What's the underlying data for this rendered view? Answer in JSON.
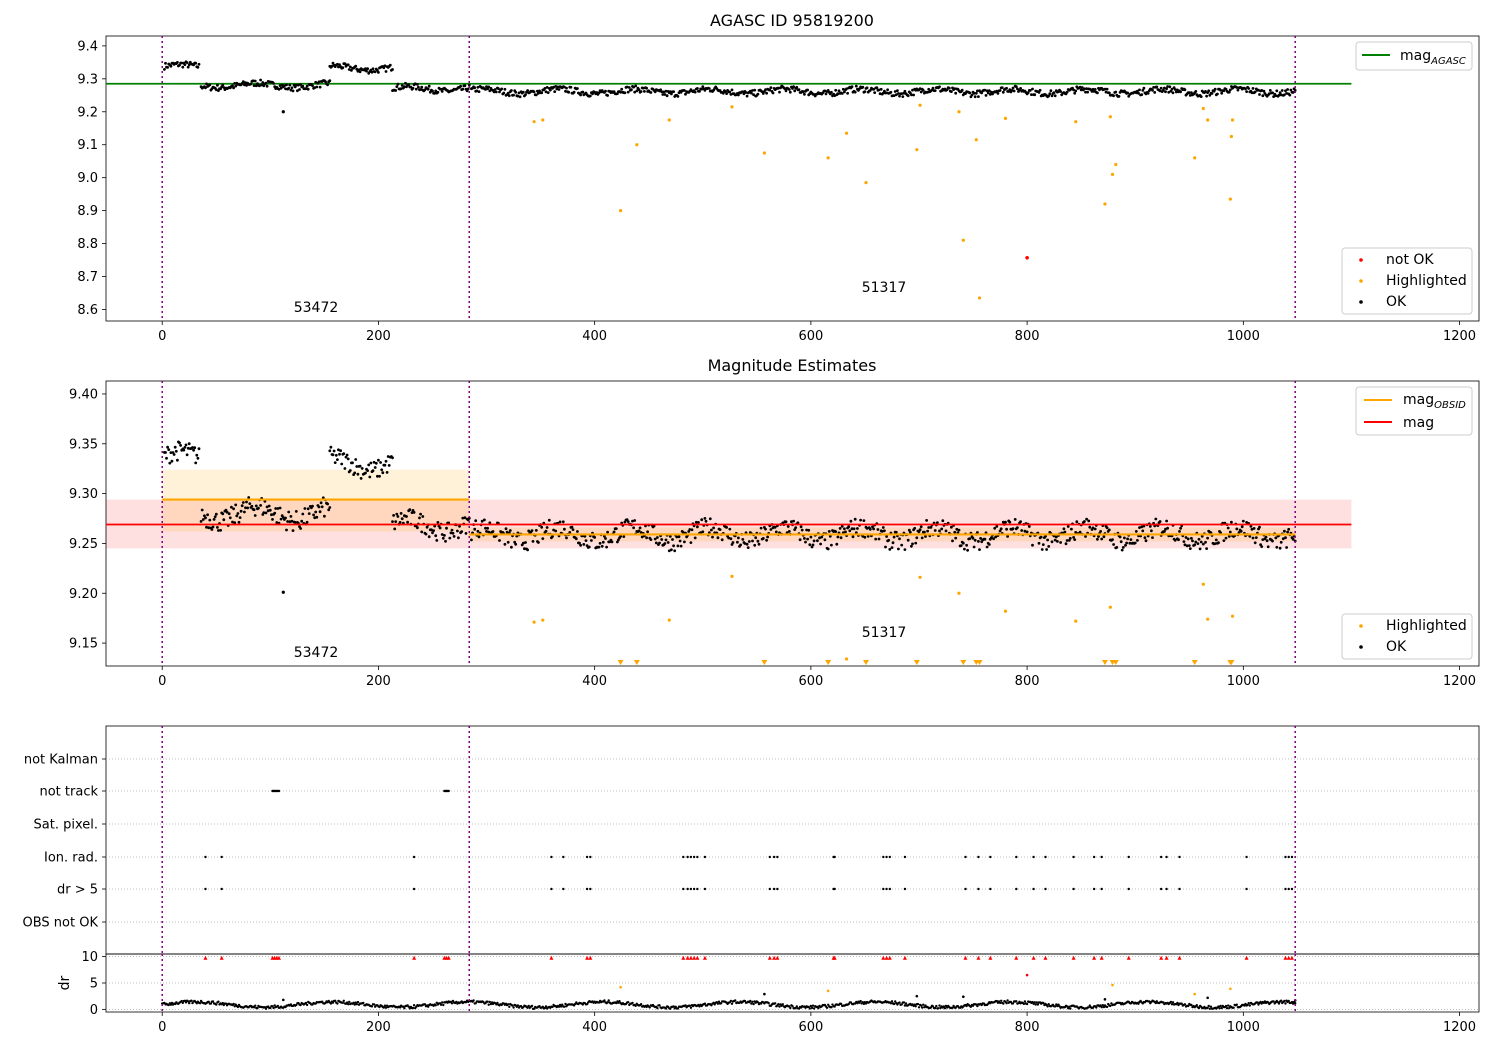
{
  "figure": {
    "width": 1500,
    "height": 1050
  },
  "colors": {
    "ok": "#000000",
    "highlighted": "#ffa500",
    "not_ok": "#ff0000",
    "mag_agasc": "#008000",
    "mag_obsid": "#ffa500",
    "mag": "#ff0000",
    "vline": "#800080"
  },
  "chart_data": [
    {
      "id": "top",
      "type": "scatter",
      "title": "AGASC ID 95819200",
      "xlim": [
        -52,
        1218
      ],
      "ylim": [
        8.565,
        9.43
      ],
      "xticks": [
        0,
        200,
        400,
        600,
        800,
        1000,
        1200
      ],
      "yticks": [
        8.6,
        8.7,
        8.8,
        8.9,
        9.0,
        9.1,
        9.2,
        9.3,
        9.4
      ],
      "yticklabels": [
        "8.6",
        "8.7",
        "8.8",
        "8.9",
        "9.0",
        "9.1",
        "9.2",
        "9.3",
        "9.4"
      ],
      "vlines": [
        0,
        284,
        1048
      ],
      "hline": {
        "name": "mag_AGASC",
        "y": 9.285,
        "x": [
          -52,
          1100
        ]
      },
      "obsid_labels": [
        {
          "text": "53472",
          "x": 142,
          "y": 8.59
        },
        {
          "text": "51317",
          "x": 665,
          "y": 8.65
        }
      ],
      "legends": [
        {
          "position": "upper right",
          "entries": [
            {
              "label": "mag",
              "sub": "AGASC",
              "kind": "line",
              "color": "#008000"
            }
          ]
        },
        {
          "position": "lower right",
          "entries": [
            {
              "label": "not OK",
              "kind": "dot",
              "color": "#ff0000"
            },
            {
              "label": "Highlighted",
              "kind": "dot",
              "color": "#ffa500"
            },
            {
              "label": "OK",
              "kind": "dot",
              "color": "#000000"
            }
          ]
        }
      ],
      "ok_segments": [
        {
          "x0": 2,
          "x1": 34,
          "base": 9.337,
          "amp": 0.012
        },
        {
          "x0": 36,
          "x1": 155,
          "base": 9.28,
          "amp": 0.012
        },
        {
          "x0": 155,
          "x1": 213,
          "base": 9.333,
          "amp": 0.012
        },
        {
          "x0": 213,
          "x1": 284,
          "base": 9.27,
          "amp": 0.012
        },
        {
          "x0": 286,
          "x1": 1048,
          "base": 9.262,
          "amp": 0.012
        }
      ],
      "extra_ok": [
        {
          "x": 112,
          "y": 9.2
        }
      ],
      "highlighted": [
        {
          "x": 344,
          "y": 9.17
        },
        {
          "x": 352,
          "y": 9.175
        },
        {
          "x": 424,
          "y": 8.9
        },
        {
          "x": 439,
          "y": 9.1
        },
        {
          "x": 469,
          "y": 9.175
        },
        {
          "x": 527,
          "y": 9.215
        },
        {
          "x": 557,
          "y": 9.075
        },
        {
          "x": 616,
          "y": 9.06
        },
        {
          "x": 633,
          "y": 9.135
        },
        {
          "x": 651,
          "y": 8.985
        },
        {
          "x": 698,
          "y": 9.085
        },
        {
          "x": 701,
          "y": 9.22
        },
        {
          "x": 737,
          "y": 9.2
        },
        {
          "x": 741,
          "y": 8.81
        },
        {
          "x": 753,
          "y": 9.115
        },
        {
          "x": 756,
          "y": 8.635
        },
        {
          "x": 780,
          "y": 9.18
        },
        {
          "x": 845,
          "y": 9.17
        },
        {
          "x": 872,
          "y": 8.92
        },
        {
          "x": 877,
          "y": 9.185
        },
        {
          "x": 879,
          "y": 9.01
        },
        {
          "x": 882,
          "y": 9.04
        },
        {
          "x": 955,
          "y": 9.06
        },
        {
          "x": 963,
          "y": 9.21
        },
        {
          "x": 967,
          "y": 9.175
        },
        {
          "x": 988,
          "y": 8.935
        },
        {
          "x": 989,
          "y": 9.125
        },
        {
          "x": 990,
          "y": 9.175
        }
      ],
      "not_ok": [
        {
          "x": 800,
          "y": 8.757
        }
      ]
    },
    {
      "id": "middle",
      "type": "scatter",
      "title": "Magnitude Estimates",
      "xlim": [
        -52,
        1218
      ],
      "ylim": [
        9.127,
        9.413
      ],
      "xticks": [
        0,
        200,
        400,
        600,
        800,
        1000,
        1200
      ],
      "yticks": [
        9.15,
        9.2,
        9.25,
        9.3,
        9.35,
        9.4
      ],
      "yticklabels": [
        "9.15",
        "9.20",
        "9.25",
        "9.30",
        "9.35",
        "9.40"
      ],
      "vlines": [
        0,
        284,
        1048
      ],
      "mag_band": {
        "y0": 9.245,
        "y1": 9.294,
        "x": [
          -52,
          1100
        ]
      },
      "mag_line": {
        "name": "mag",
        "y": 9.269,
        "x": [
          -52,
          1100
        ]
      },
      "obsid_mag": [
        {
          "x0": 0,
          "x1": 284,
          "y": 9.294,
          "band": [
            9.262,
            9.324
          ]
        },
        {
          "x0": 284,
          "x1": 1048,
          "y": 9.259,
          "band": [
            9.252,
            9.266
          ]
        }
      ],
      "obsid_labels": [
        {
          "text": "53472",
          "x": 142,
          "y": 9.136
        },
        {
          "text": "51317",
          "x": 665,
          "y": 9.156
        }
      ],
      "legends": [
        {
          "position": "upper right",
          "entries": [
            {
              "label": "mag",
              "sub": "OBSID",
              "kind": "line",
              "color": "#ffa500"
            },
            {
              "label": "mag",
              "kind": "line",
              "color": "#ff0000"
            }
          ]
        },
        {
          "position": "lower right",
          "entries": [
            {
              "label": "Highlighted",
              "kind": "dot",
              "color": "#ffa500"
            },
            {
              "label": "OK",
              "kind": "dot",
              "color": "#000000"
            }
          ]
        }
      ],
      "ok_segments": [
        {
          "x0": 2,
          "x1": 34,
          "base": 9.336,
          "amp": 0.012
        },
        {
          "x0": 36,
          "x1": 155,
          "base": 9.28,
          "amp": 0.013
        },
        {
          "x0": 155,
          "x1": 213,
          "base": 9.33,
          "amp": 0.012
        },
        {
          "x0": 213,
          "x1": 284,
          "base": 9.268,
          "amp": 0.012
        },
        {
          "x0": 286,
          "x1": 1048,
          "base": 9.259,
          "amp": 0.012
        }
      ],
      "extra_ok": [
        {
          "x": 112,
          "y": 9.201
        }
      ],
      "highlighted": [
        {
          "x": 344,
          "y": 9.171
        },
        {
          "x": 352,
          "y": 9.173
        },
        {
          "x": 469,
          "y": 9.173
        },
        {
          "x": 527,
          "y": 9.217
        },
        {
          "x": 633,
          "y": 9.134
        },
        {
          "x": 701,
          "y": 9.216
        },
        {
          "x": 737,
          "y": 9.2
        },
        {
          "x": 780,
          "y": 9.182
        },
        {
          "x": 845,
          "y": 9.172
        },
        {
          "x": 877,
          "y": 9.186
        },
        {
          "x": 963,
          "y": 9.209
        },
        {
          "x": 967,
          "y": 9.174
        },
        {
          "x": 990,
          "y": 9.177
        }
      ],
      "below_markers": [
        424,
        439,
        557,
        616,
        651,
        698,
        741,
        753,
        756,
        872,
        879,
        882,
        955,
        988,
        989
      ]
    },
    {
      "id": "flags",
      "type": "scatter",
      "xlim": [
        -52,
        1218
      ],
      "categories": [
        "OBS not OK",
        "dr > 5",
        "Ion. rad.",
        "Sat. pixel.",
        "not track",
        "not Kalman"
      ],
      "vlines": [
        0,
        284,
        1048
      ],
      "not_track": [
        102,
        103,
        104,
        105,
        106,
        107,
        108,
        261,
        262,
        263,
        264,
        265
      ],
      "ion_rad": [
        40,
        55,
        233,
        360,
        371,
        393,
        396,
        482,
        486,
        489,
        492,
        495,
        502,
        562,
        566,
        569,
        621,
        622,
        667,
        670,
        673,
        687,
        743,
        755,
        766,
        790,
        806,
        817,
        843,
        862,
        869,
        894,
        924,
        929,
        941,
        1003,
        1039,
        1042,
        1045
      ],
      "dr_gt5": [
        40,
        55,
        233,
        360,
        371,
        393,
        396,
        482,
        486,
        489,
        492,
        495,
        502,
        562,
        566,
        569,
        621,
        622,
        667,
        670,
        673,
        687,
        743,
        755,
        766,
        790,
        806,
        817,
        843,
        862,
        869,
        894,
        924,
        929,
        941,
        1003,
        1039,
        1042,
        1045
      ]
    },
    {
      "id": "dr",
      "type": "scatter",
      "ylabel": "dr",
      "xlim": [
        -52,
        1218
      ],
      "ylim": [
        -0.5,
        10.5
      ],
      "xticks": [
        0,
        200,
        400,
        600,
        800,
        1000,
        1200
      ],
      "yticks": [
        0,
        5,
        10
      ],
      "yticklabels": [
        "0",
        "5",
        "10"
      ],
      "vlines": [
        0,
        284,
        1048
      ],
      "cap_markers_y": 9.8,
      "cap_markers": [
        40,
        55,
        102,
        104,
        106,
        108,
        233,
        261,
        263,
        265,
        360,
        393,
        396,
        482,
        486,
        489,
        492,
        495,
        502,
        562,
        566,
        569,
        621,
        622,
        667,
        670,
        673,
        687,
        743,
        755,
        766,
        790,
        806,
        817,
        843,
        862,
        869,
        894,
        924,
        929,
        941,
        1003,
        1039,
        1042,
        1045
      ],
      "red_points": [
        {
          "x": 800,
          "y": 6.5
        }
      ],
      "orange_points": [
        {
          "x": 424,
          "y": 4.2
        },
        {
          "x": 616,
          "y": 3.5
        },
        {
          "x": 879,
          "y": 4.6
        },
        {
          "x": 955,
          "y": 2.9
        },
        {
          "x": 988,
          "y": 3.9
        }
      ],
      "baseline": {
        "base": 0.9,
        "amp": 0.5
      },
      "extra_ok": [
        {
          "x": 112,
          "y": 1.8
        },
        {
          "x": 557,
          "y": 2.9
        },
        {
          "x": 698,
          "y": 2.5
        },
        {
          "x": 741,
          "y": 2.4
        },
        {
          "x": 872,
          "y": 1.9
        },
        {
          "x": 967,
          "y": 2.2
        },
        {
          "x": 1048,
          "y": 1.7
        }
      ]
    }
  ]
}
